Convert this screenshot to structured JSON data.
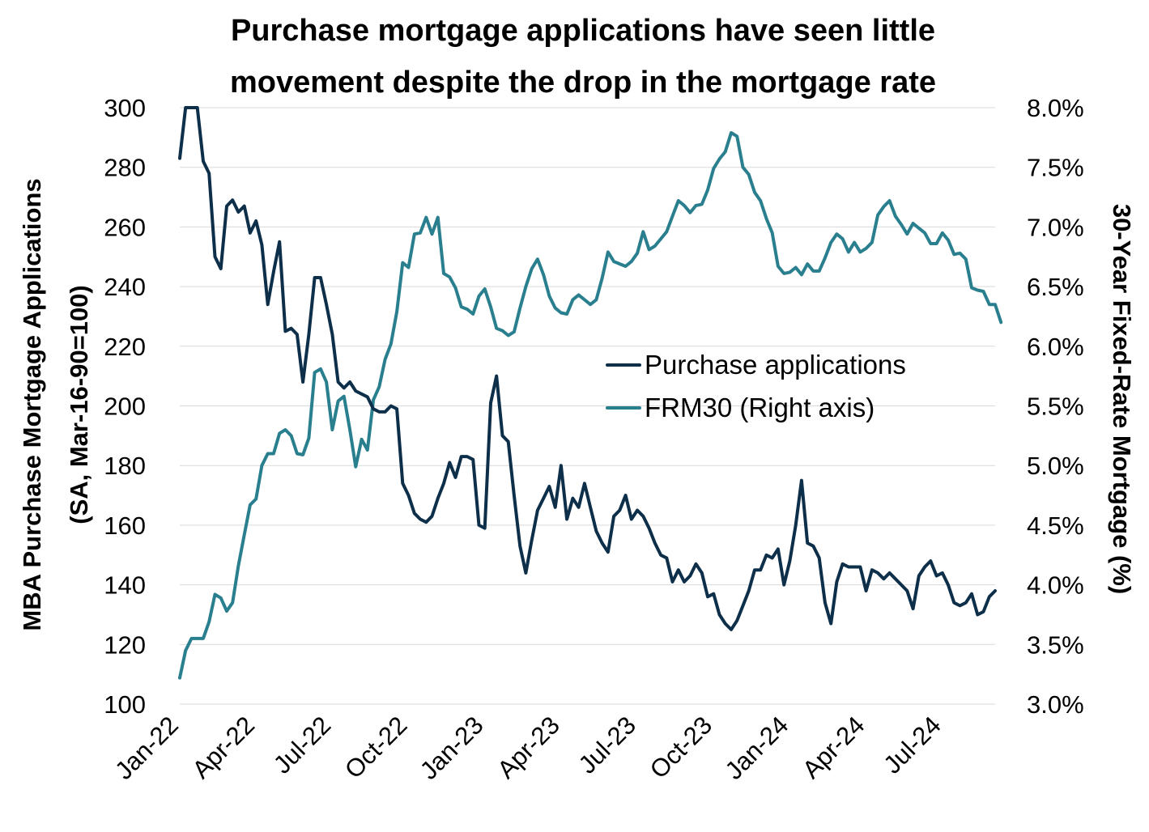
{
  "chart_data": {
    "type": "line",
    "title_lines": [
      "Purchase mortgage applications have seen little",
      "movement despite the drop in the mortgage rate"
    ],
    "ylabel_lines": [
      "MBA Purchase Mortgage Applications",
      "(SA, Mar-16-90=100)"
    ],
    "y2label": "30-Year Fixed-Rate Mortgage (%)",
    "ylim": [
      100,
      300
    ],
    "yticks": [
      100,
      120,
      140,
      160,
      180,
      200,
      220,
      240,
      260,
      280,
      300
    ],
    "ytick_labels": [
      "100",
      "120",
      "140",
      "160",
      "180",
      "200",
      "220",
      "240",
      "260",
      "280",
      "300"
    ],
    "y2lim": [
      3.0,
      8.0
    ],
    "y2ticks": [
      3.0,
      3.5,
      4.0,
      4.5,
      5.0,
      5.5,
      6.0,
      6.5,
      7.0,
      7.5,
      8.0
    ],
    "y2tick_labels": [
      "3.0%",
      "3.5%",
      "4.0%",
      "4.5%",
      "5.0%",
      "5.5%",
      "6.0%",
      "6.5%",
      "7.0%",
      "7.5%",
      "8.0%"
    ],
    "x_count": 140,
    "xtick_labels": [
      "Jan-22",
      "Apr-22",
      "Jul-22",
      "Oct-22",
      "Jan-23",
      "Apr-23",
      "Jul-23",
      "Oct-23",
      "Jan-24",
      "Apr-24",
      "Jul-24"
    ],
    "xtick_index": [
      0,
      13,
      26,
      39,
      52,
      65,
      78,
      91,
      104,
      117,
      130
    ],
    "grid": true,
    "legend_position": "center-right",
    "colors": {
      "purchase": "#0d2f4a",
      "frm30": "#2a7f8f"
    },
    "series": [
      {
        "name": "Purchase applications",
        "axis": "left",
        "values": [
          283,
          305,
          300,
          302,
          282,
          278,
          250,
          246,
          267,
          269,
          265,
          267,
          258,
          262,
          254,
          234,
          245,
          255,
          225,
          226,
          224,
          208,
          224,
          243,
          243,
          234,
          224,
          208,
          206,
          208,
          205,
          204,
          203,
          199,
          198,
          198,
          200,
          199,
          174,
          170,
          164,
          162,
          161,
          163,
          169,
          174,
          181,
          176,
          183,
          183,
          182,
          160,
          159,
          201,
          210,
          190,
          188,
          170,
          153,
          144,
          155,
          165,
          169,
          173,
          166,
          180,
          162,
          169,
          166,
          174,
          166,
          158,
          154,
          151,
          163,
          165,
          170,
          162,
          165,
          163,
          159,
          154,
          150,
          149,
          141,
          145,
          141,
          143,
          147,
          144,
          136,
          137,
          130,
          127,
          125,
          128,
          133,
          138,
          145,
          145,
          150,
          149,
          152,
          140,
          148,
          160,
          175,
          154,
          153,
          149,
          134,
          127,
          141,
          147,
          146,
          146,
          146,
          138,
          145,
          144,
          142,
          144,
          142,
          140,
          138,
          132,
          143,
          146,
          148,
          143,
          144,
          140,
          134,
          133,
          134,
          137,
          130,
          131,
          136,
          138
        ]
      },
      {
        "name": "FRM30 (Right axis)",
        "axis": "right",
        "values": [
          3.22,
          3.45,
          3.55,
          3.55,
          3.55,
          3.69,
          3.92,
          3.89,
          3.78,
          3.85,
          4.16,
          4.42,
          4.67,
          4.72,
          5.0,
          5.1,
          5.1,
          5.27,
          5.3,
          5.25,
          5.1,
          5.09,
          5.23,
          5.78,
          5.81,
          5.7,
          5.3,
          5.54,
          5.58,
          5.3,
          4.99,
          5.22,
          5.13,
          5.55,
          5.66,
          5.89,
          6.02,
          6.29,
          6.7,
          6.66,
          6.94,
          6.95,
          7.08,
          6.94,
          7.08,
          6.61,
          6.58,
          6.49,
          6.33,
          6.31,
          6.27,
          6.42,
          6.48,
          6.33,
          6.15,
          6.13,
          6.09,
          6.12,
          6.32,
          6.5,
          6.65,
          6.73,
          6.6,
          6.42,
          6.32,
          6.28,
          6.27,
          6.39,
          6.43,
          6.39,
          6.35,
          6.39,
          6.57,
          6.79,
          6.71,
          6.69,
          6.67,
          6.71,
          6.78,
          6.96,
          6.81,
          6.84,
          6.9,
          6.96,
          7.09,
          7.22,
          7.18,
          7.12,
          7.18,
          7.19,
          7.31,
          7.49,
          7.57,
          7.63,
          7.79,
          7.76,
          7.5,
          7.44,
          7.29,
          7.22,
          7.07,
          6.95,
          6.67,
          6.61,
          6.62,
          6.66,
          6.6,
          6.69,
          6.63,
          6.63,
          6.74,
          6.87,
          6.94,
          6.9,
          6.79,
          6.87,
          6.79,
          6.82,
          6.87,
          7.1,
          7.17,
          7.22,
          7.09,
          7.02,
          6.94,
          7.03,
          6.99,
          6.95,
          6.86,
          6.86,
          6.95,
          6.89,
          6.77,
          6.78,
          6.73,
          6.49,
          6.47,
          6.46,
          6.35,
          6.35,
          6.2
        ]
      }
    ]
  }
}
